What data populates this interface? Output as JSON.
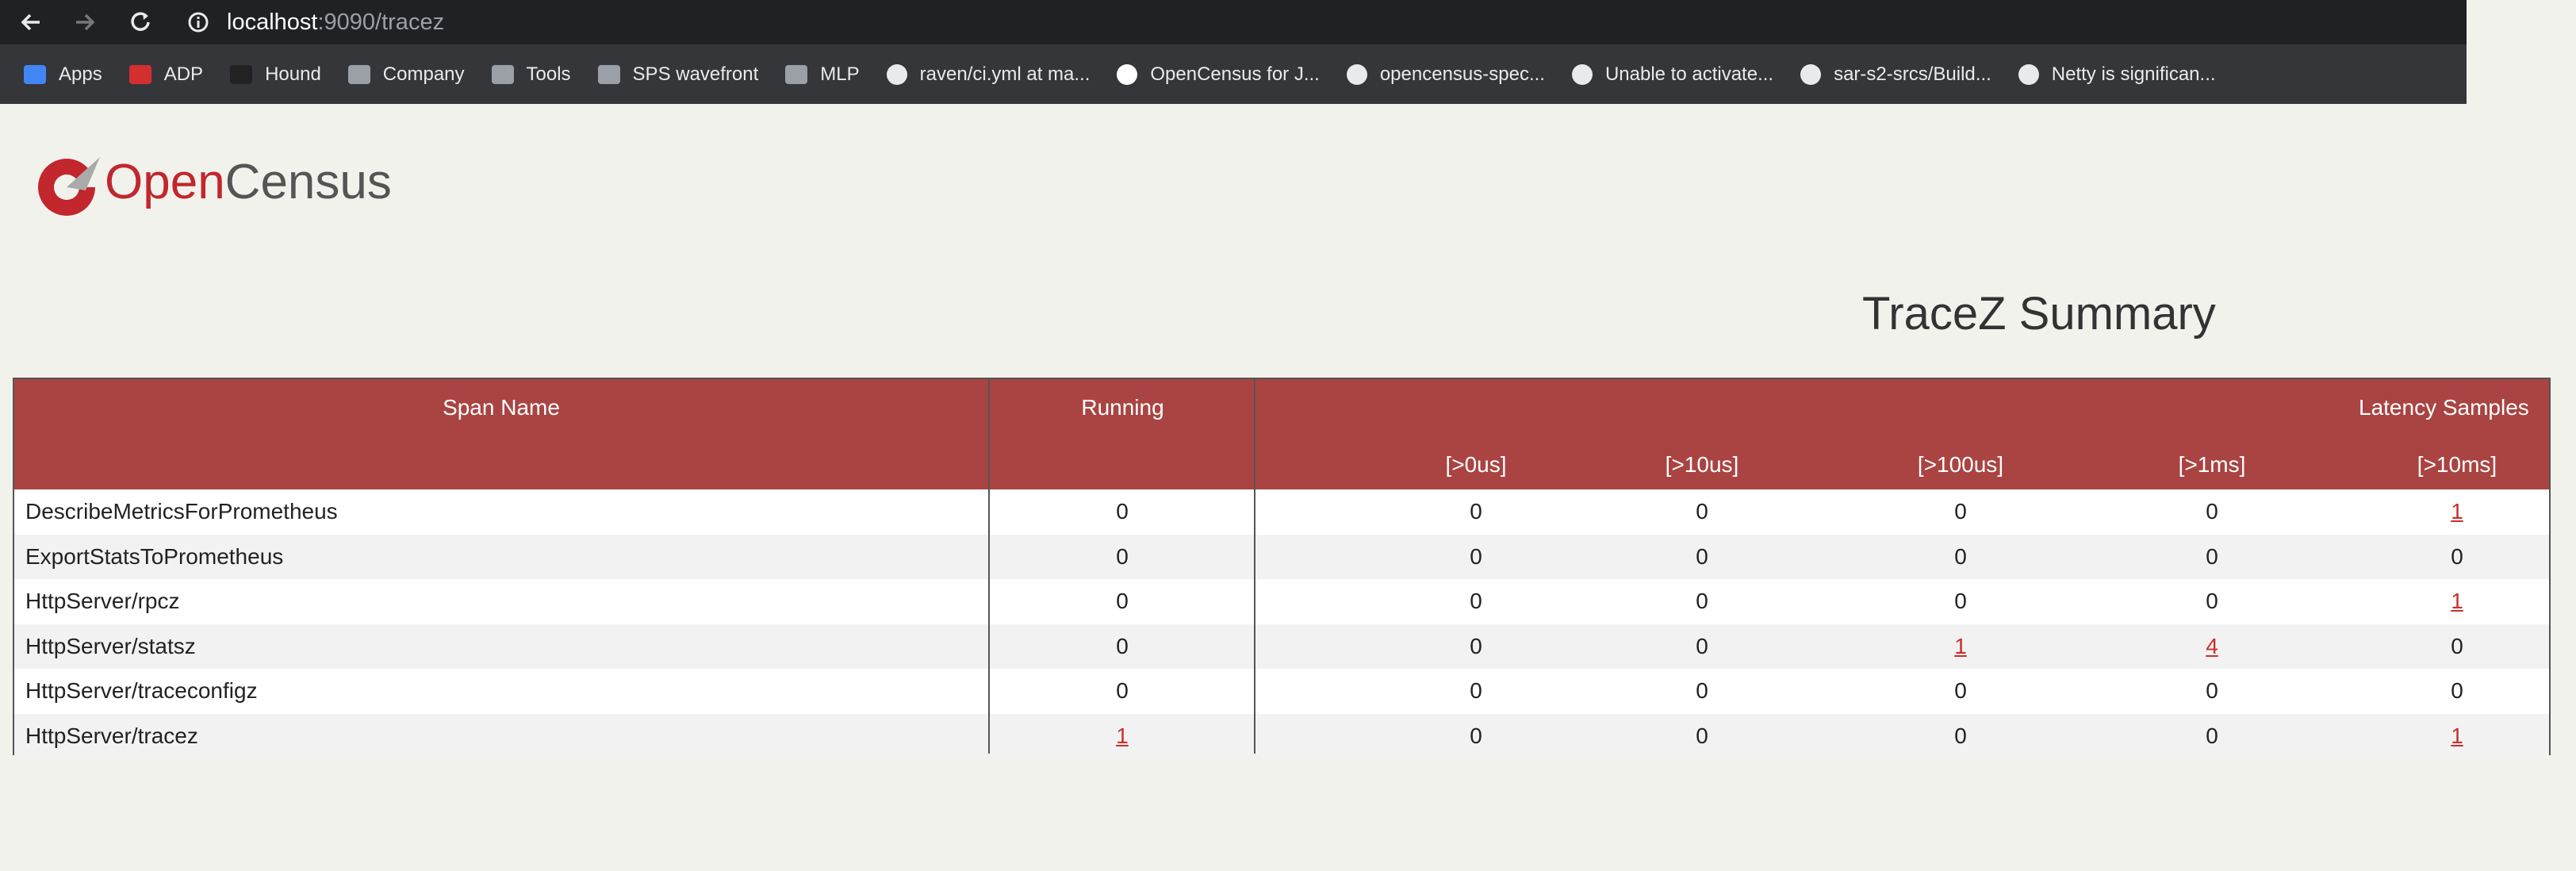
{
  "browser": {
    "url_host": "localhost",
    "url_path": ":9090/tracez",
    "bookmarks": [
      "Apps",
      "ADP",
      "Hound",
      "Company",
      "Tools",
      "SPS wavefront",
      "MLP",
      "raven/ci.yml at ma...",
      "OpenCensus for J...",
      "opencensus-spec...",
      "Unable to activate...",
      "sar-s2-srcs/Build...",
      "Netty is significan..."
    ]
  },
  "logo": {
    "open": "Open",
    "census": "Census"
  },
  "title": "TraceZ Summary",
  "table": {
    "headers": {
      "span_name": "Span Name",
      "running": "Running",
      "latency": "Latency Samples",
      "buckets": [
        "[>0us]",
        "[>10us]",
        "[>100us]",
        "[>1ms]",
        "[>10ms]"
      ]
    },
    "rows": [
      {
        "name": "DescribeMetricsForPrometheus",
        "running": 0,
        "latency": [
          0,
          0,
          0,
          0,
          1
        ]
      },
      {
        "name": "ExportStatsToPrometheus",
        "running": 0,
        "latency": [
          0,
          0,
          0,
          0,
          0
        ]
      },
      {
        "name": "HttpServer/rpcz",
        "running": 0,
        "latency": [
          0,
          0,
          0,
          0,
          1
        ]
      },
      {
        "name": "HttpServer/statsz",
        "running": 0,
        "latency": [
          0,
          0,
          1,
          4,
          0
        ]
      },
      {
        "name": "HttpServer/traceconfigz",
        "running": 0,
        "latency": [
          0,
          0,
          0,
          0,
          0
        ]
      },
      {
        "name": "HttpServer/tracez",
        "running": 1,
        "latency": [
          0,
          0,
          0,
          0,
          1
        ]
      }
    ]
  }
}
